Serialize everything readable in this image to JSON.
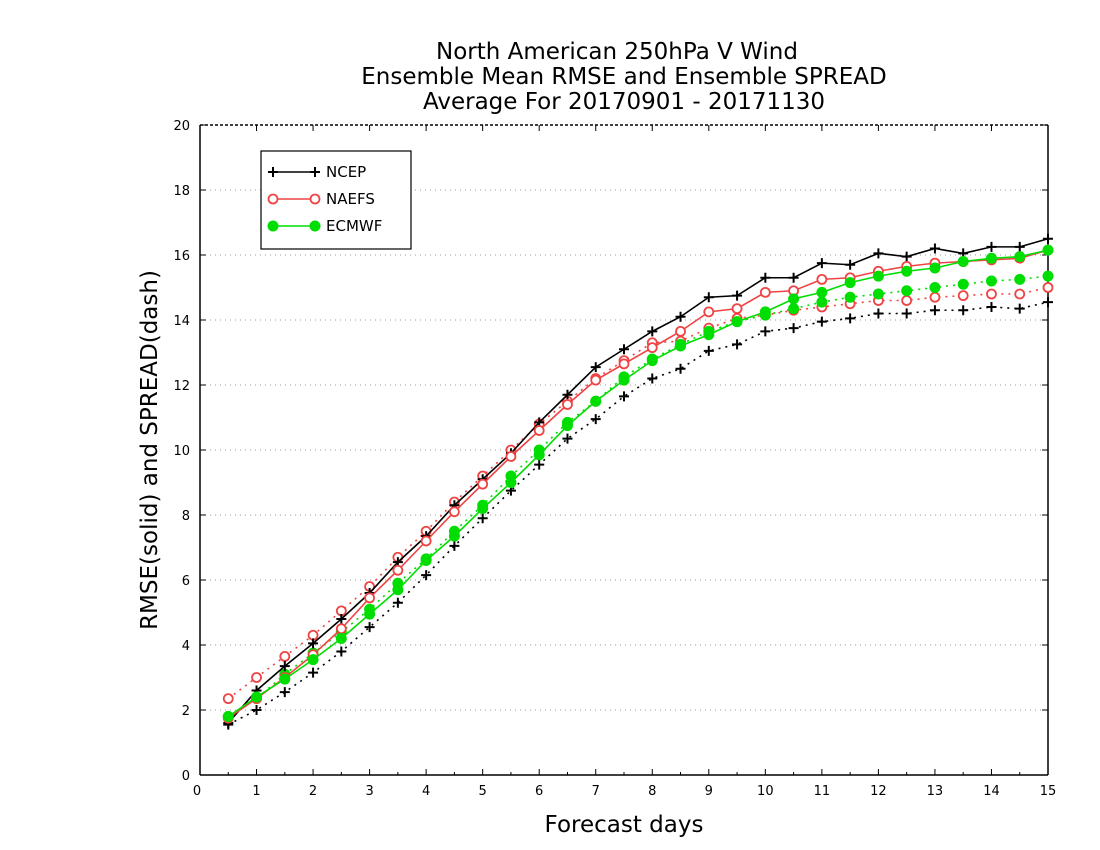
{
  "chart_data": {
    "type": "line",
    "title_lines": [
      "North American 250hPa V Wind",
      "Ensemble Mean RMSE and Ensemble SPREAD",
      "Average For 20170901 - 20171130"
    ],
    "xlabel": "Forecast days",
    "ylabel": "RMSE(solid) and SPREAD(dash)",
    "xlim": [
      0,
      15
    ],
    "ylim": [
      0,
      20
    ],
    "xticks": [
      "0",
      "1",
      "2",
      "3",
      "4",
      "5",
      "6",
      "7",
      "8",
      "9",
      "10",
      "11",
      "12",
      "13",
      "14",
      "15"
    ],
    "yticks": [
      "0",
      "2",
      "4",
      "6",
      "8",
      "10",
      "12",
      "14",
      "16",
      "18",
      "20"
    ],
    "grid": "horizontal dotted",
    "legend_position": "top-left",
    "x": [
      0.5,
      1,
      1.5,
      2,
      2.5,
      3,
      3.5,
      4,
      4.5,
      5,
      5.5,
      6,
      6.5,
      7,
      7.5,
      8,
      8.5,
      9,
      9.5,
      10,
      10.5,
      11,
      11.5,
      12,
      12.5,
      13,
      13.5,
      14,
      14.5,
      15
    ],
    "series": [
      {
        "name": "NCEP",
        "color": "#000000",
        "marker": "plus",
        "rmse": [
          1.6,
          2.6,
          3.35,
          4.05,
          4.8,
          5.6,
          6.55,
          7.35,
          8.3,
          9.1,
          9.9,
          10.85,
          11.7,
          12.55,
          13.1,
          13.65,
          14.1,
          14.7,
          14.75,
          15.3,
          15.3,
          15.75,
          15.7,
          16.05,
          15.95,
          16.2,
          16.05,
          16.25,
          16.25,
          16.5
        ],
        "spread": [
          1.55,
          2.0,
          2.55,
          3.15,
          3.8,
          4.55,
          5.3,
          6.15,
          7.05,
          7.9,
          8.75,
          9.55,
          10.35,
          10.95,
          11.65,
          12.2,
          12.5,
          13.05,
          13.25,
          13.65,
          13.75,
          13.95,
          14.05,
          14.2,
          14.2,
          14.3,
          14.3,
          14.4,
          14.35,
          14.55
        ]
      },
      {
        "name": "NAEFS",
        "color": "#ee4444",
        "marker": "open-circle",
        "rmse": [
          1.75,
          2.35,
          3.0,
          3.7,
          4.5,
          5.45,
          6.3,
          7.2,
          8.1,
          8.95,
          9.8,
          10.6,
          11.4,
          12.15,
          12.65,
          13.15,
          13.65,
          14.25,
          14.35,
          14.85,
          14.9,
          15.25,
          15.3,
          15.5,
          15.65,
          15.75,
          15.8,
          15.85,
          15.9,
          16.15
        ],
        "spread": [
          2.35,
          3.0,
          3.65,
          4.3,
          5.05,
          5.8,
          6.7,
          7.5,
          8.4,
          9.2,
          10.0,
          10.8,
          11.5,
          12.2,
          12.75,
          13.3,
          13.35,
          13.75,
          14.05,
          14.15,
          14.3,
          14.4,
          14.5,
          14.6,
          14.6,
          14.7,
          14.75,
          14.8,
          14.8,
          15.0
        ]
      },
      {
        "name": "ECMWF",
        "color": "#00dd00",
        "marker": "filled-circle",
        "rmse": [
          1.8,
          2.4,
          2.95,
          3.55,
          4.2,
          4.95,
          5.7,
          6.6,
          7.35,
          8.2,
          9.0,
          9.85,
          10.75,
          11.5,
          12.15,
          12.75,
          13.2,
          13.55,
          13.95,
          14.25,
          14.65,
          14.85,
          15.15,
          15.35,
          15.5,
          15.6,
          15.8,
          15.9,
          15.95,
          16.15
        ],
        "spread": [
          1.8,
          2.35,
          3.1,
          3.75,
          4.4,
          5.1,
          5.9,
          6.65,
          7.5,
          8.3,
          9.2,
          10.0,
          10.85,
          11.5,
          12.25,
          12.8,
          13.25,
          13.65,
          13.95,
          14.15,
          14.35,
          14.55,
          14.7,
          14.8,
          14.9,
          15.0,
          15.1,
          15.2,
          15.25,
          15.35
        ]
      }
    ]
  }
}
